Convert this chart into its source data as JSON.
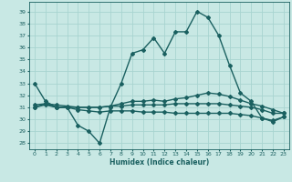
{
  "title": "",
  "xlabel": "Humidex (Indice chaleur)",
  "ylabel": "",
  "xlim": [
    -0.5,
    23.5
  ],
  "ylim": [
    27.5,
    39.8
  ],
  "yticks": [
    28,
    29,
    30,
    31,
    32,
    33,
    34,
    35,
    36,
    37,
    38,
    39
  ],
  "xticks": [
    0,
    1,
    2,
    3,
    4,
    5,
    6,
    7,
    8,
    9,
    10,
    11,
    12,
    13,
    14,
    15,
    16,
    17,
    18,
    19,
    20,
    21,
    22,
    23
  ],
  "bg_color": "#c8e8e4",
  "grid_color": "#a8d4d0",
  "line_color": "#1a6060",
  "line_width": 1.0,
  "marker": "D",
  "marker_size": 2.0,
  "curves": [
    {
      "x": [
        0,
        1,
        2,
        3,
        4,
        5,
        6,
        7,
        8,
        9,
        10,
        11,
        12,
        13,
        14,
        15,
        16,
        17,
        18,
        19,
        20,
        21,
        22,
        23
      ],
      "y": [
        33,
        31.5,
        31,
        31,
        29.5,
        29,
        28,
        31,
        33,
        35.5,
        35.8,
        36.8,
        35.5,
        37.3,
        37.3,
        39,
        38.5,
        37,
        34.5,
        32.2,
        31.5,
        30.1,
        29.8,
        30.2
      ]
    },
    {
      "x": [
        0,
        1,
        2,
        3,
        4,
        5,
        6,
        7,
        8,
        9,
        10,
        11,
        12,
        13,
        14,
        15,
        16,
        17,
        18,
        19,
        20,
        21,
        22,
        23
      ],
      "y": [
        31.0,
        31.3,
        31.0,
        31.0,
        31.0,
        31.0,
        31.0,
        31.1,
        31.3,
        31.5,
        31.5,
        31.6,
        31.5,
        31.7,
        31.8,
        32.0,
        32.2,
        32.1,
        31.9,
        31.6,
        31.3,
        31.1,
        30.8,
        30.5
      ]
    },
    {
      "x": [
        0,
        1,
        2,
        3,
        4,
        5,
        6,
        7,
        8,
        9,
        10,
        11,
        12,
        13,
        14,
        15,
        16,
        17,
        18,
        19,
        20,
        21,
        22,
        23
      ],
      "y": [
        31.2,
        31.3,
        31.2,
        31.1,
        31.0,
        31.0,
        31.0,
        31.1,
        31.1,
        31.2,
        31.2,
        31.2,
        31.2,
        31.3,
        31.3,
        31.3,
        31.3,
        31.3,
        31.2,
        31.1,
        31.0,
        30.8,
        30.5,
        30.5
      ]
    },
    {
      "x": [
        0,
        1,
        2,
        3,
        4,
        5,
        6,
        7,
        8,
        9,
        10,
        11,
        12,
        13,
        14,
        15,
        16,
        17,
        18,
        19,
        20,
        21,
        22,
        23
      ],
      "y": [
        31.0,
        31.2,
        31.0,
        31.0,
        30.8,
        30.7,
        30.6,
        30.7,
        30.7,
        30.7,
        30.6,
        30.6,
        30.6,
        30.5,
        30.5,
        30.5,
        30.5,
        30.5,
        30.5,
        30.4,
        30.3,
        30.1,
        29.9,
        30.2
      ]
    }
  ]
}
